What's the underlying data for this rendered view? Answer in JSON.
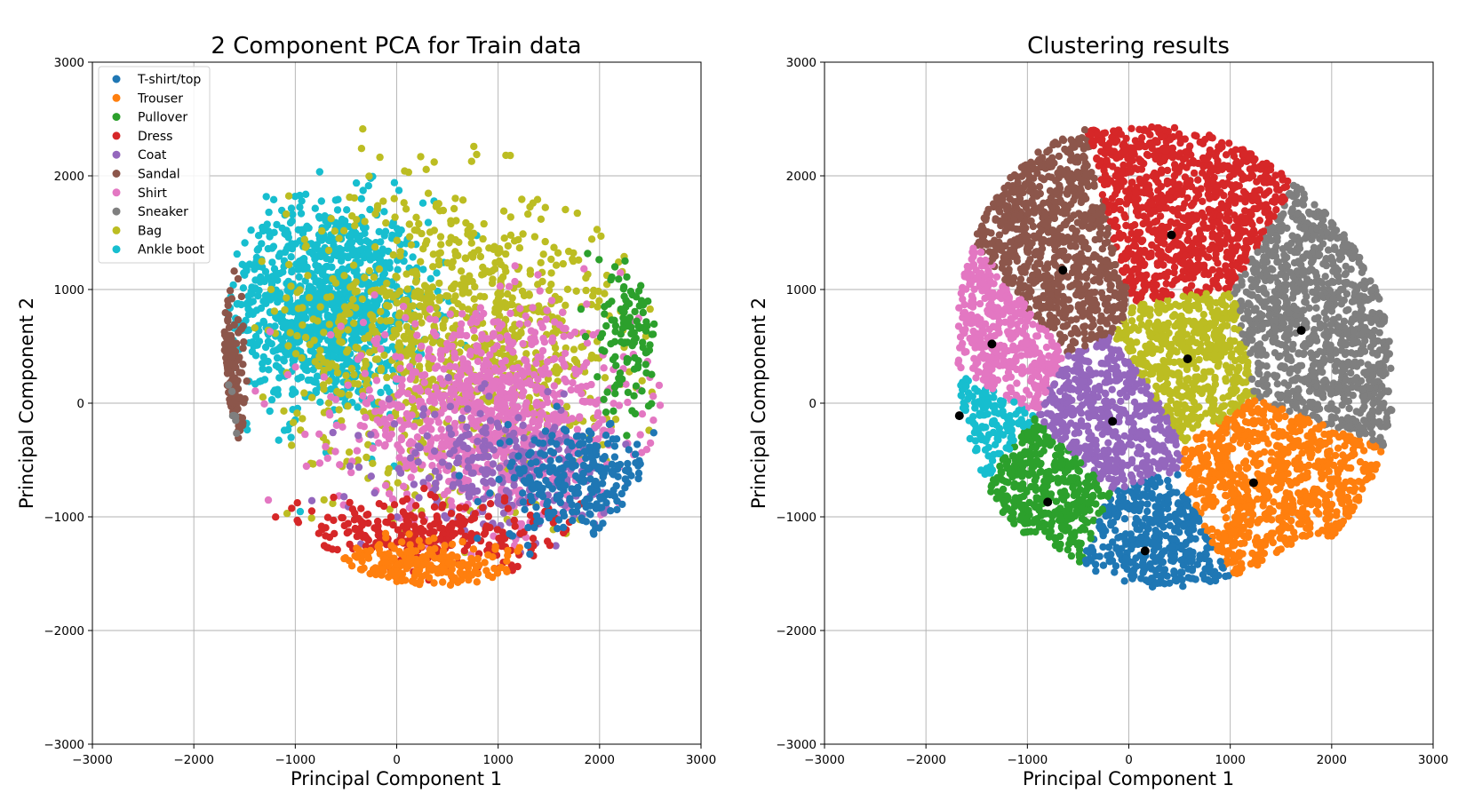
{
  "chart_data": [
    {
      "type": "scatter",
      "title": "2 Component PCA for Train data",
      "xlabel": "Principal Component 1",
      "ylabel": "Principal Component 2",
      "xlim": [
        -3000,
        3000
      ],
      "ylim": [
        -3000,
        3000
      ],
      "xticks": [
        -3000,
        -2000,
        -1000,
        0,
        1000,
        2000,
        3000
      ],
      "yticks": [
        -3000,
        -2000,
        -1000,
        0,
        1000,
        2000,
        3000
      ],
      "xtick_labels": [
        "−3000",
        "−2000",
        "−1000",
        "0",
        "1000",
        "2000",
        "3000"
      ],
      "ytick_labels": [
        "−3000",
        "−2000",
        "−1000",
        "0",
        "1000",
        "2000",
        "3000"
      ],
      "grid": true,
      "legend_position": "upper-left",
      "series": [
        {
          "name": "T-shirt/top",
          "color": "#1f77b4",
          "center": [
            1800,
            -700
          ],
          "spread": [
            700,
            450
          ]
        },
        {
          "name": "Trouser",
          "color": "#ff7f0e",
          "center": [
            200,
            -1450
          ],
          "spread": [
            900,
            200
          ]
        },
        {
          "name": "Pullover",
          "color": "#2ca02c",
          "center": [
            2300,
            700
          ],
          "spread": [
            300,
            700
          ]
        },
        {
          "name": "Dress",
          "color": "#d62728",
          "center": [
            300,
            -1150
          ],
          "spread": [
            1300,
            300
          ]
        },
        {
          "name": "Coat",
          "color": "#9467bd",
          "center": [
            1000,
            -600
          ],
          "spread": [
            1000,
            500
          ]
        },
        {
          "name": "Sandal",
          "color": "#8c564b",
          "center": [
            -1750,
            100
          ],
          "spread": [
            200,
            700
          ]
        },
        {
          "name": "Shirt",
          "color": "#e377c2",
          "center": [
            900,
            -100
          ],
          "spread": [
            1300,
            800
          ]
        },
        {
          "name": "Sneaker",
          "color": "#7f7f7f",
          "center": [
            -1850,
            -250
          ],
          "spread": [
            150,
            350
          ]
        },
        {
          "name": "Bag",
          "color": "#bcbd22",
          "center": [
            600,
            600
          ],
          "spread": [
            1500,
            1200
          ]
        },
        {
          "name": "Ankle boot",
          "color": "#17becf",
          "center": [
            -700,
            850
          ],
          "spread": [
            900,
            850
          ]
        }
      ]
    },
    {
      "type": "scatter",
      "title": "Clustering results",
      "xlabel": "Principal Component 1",
      "ylabel": "Principal Component 2",
      "xlim": [
        -3000,
        3000
      ],
      "ylim": [
        -3000,
        3000
      ],
      "xticks": [
        -3000,
        -2000,
        -1000,
        0,
        1000,
        2000,
        3000
      ],
      "yticks": [
        -3000,
        -2000,
        -1000,
        0,
        1000,
        2000,
        3000
      ],
      "xtick_labels": [
        "−3000",
        "−2000",
        "−1000",
        "0",
        "1000",
        "2000",
        "3000"
      ],
      "ytick_labels": [
        "−3000",
        "−2000",
        "−1000",
        "0",
        "1000",
        "2000",
        "3000"
      ],
      "grid": true,
      "centroid_color": "#000000",
      "clusters": [
        {
          "color": "#d62728",
          "centroid": [
            420,
            1480
          ]
        },
        {
          "color": "#8c564b",
          "centroid": [
            -650,
            1170
          ]
        },
        {
          "color": "#7f7f7f",
          "centroid": [
            1700,
            640
          ]
        },
        {
          "color": "#e377c2",
          "centroid": [
            -1350,
            520
          ]
        },
        {
          "color": "#bcbd22",
          "centroid": [
            580,
            390
          ]
        },
        {
          "color": "#9467bd",
          "centroid": [
            -160,
            -160
          ]
        },
        {
          "color": "#17becf",
          "centroid": [
            -1670,
            -110
          ]
        },
        {
          "color": "#ff7f0e",
          "centroid": [
            1230,
            -700
          ]
        },
        {
          "color": "#2ca02c",
          "centroid": [
            -800,
            -870
          ]
        },
        {
          "color": "#1f77b4",
          "centroid": [
            160,
            -1300
          ]
        }
      ]
    }
  ]
}
